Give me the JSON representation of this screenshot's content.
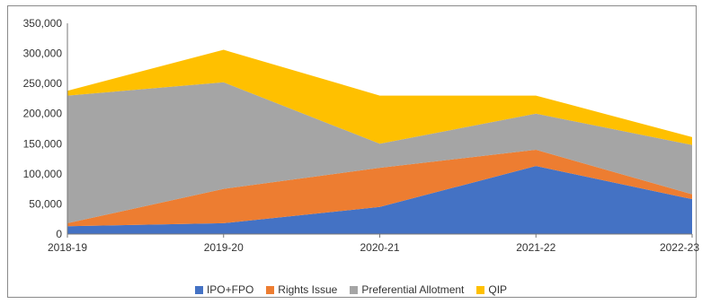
{
  "chart_data": {
    "type": "area",
    "stacked": true,
    "categories": [
      "2018-19",
      "2019-20",
      "2020-21",
      "2021-22",
      "2022-23"
    ],
    "series": [
      {
        "name": "IPO+FPO",
        "color": "#4472C4",
        "values": [
          13000,
          18000,
          45000,
          113000,
          58000
        ]
      },
      {
        "name": "Rights Issue",
        "color": "#ED7D31",
        "values": [
          5000,
          57000,
          65000,
          27000,
          8000
        ]
      },
      {
        "name": "Preferential Allotment",
        "color": "#A5A5A5",
        "values": [
          212000,
          177000,
          40000,
          60000,
          82000
        ]
      },
      {
        "name": "QIP",
        "color": "#FFC000",
        "values": [
          8000,
          54000,
          80000,
          30000,
          13000
        ]
      }
    ],
    "ylim": [
      0,
      350000
    ],
    "yticks": [
      "0",
      "50,000",
      "100,000",
      "150,000",
      "200,000",
      "250,000",
      "300,000",
      "350,000"
    ],
    "ytick_values": [
      0,
      50000,
      100000,
      150000,
      200000,
      250000,
      300000,
      350000
    ],
    "legend_position": "bottom",
    "grid": false
  }
}
